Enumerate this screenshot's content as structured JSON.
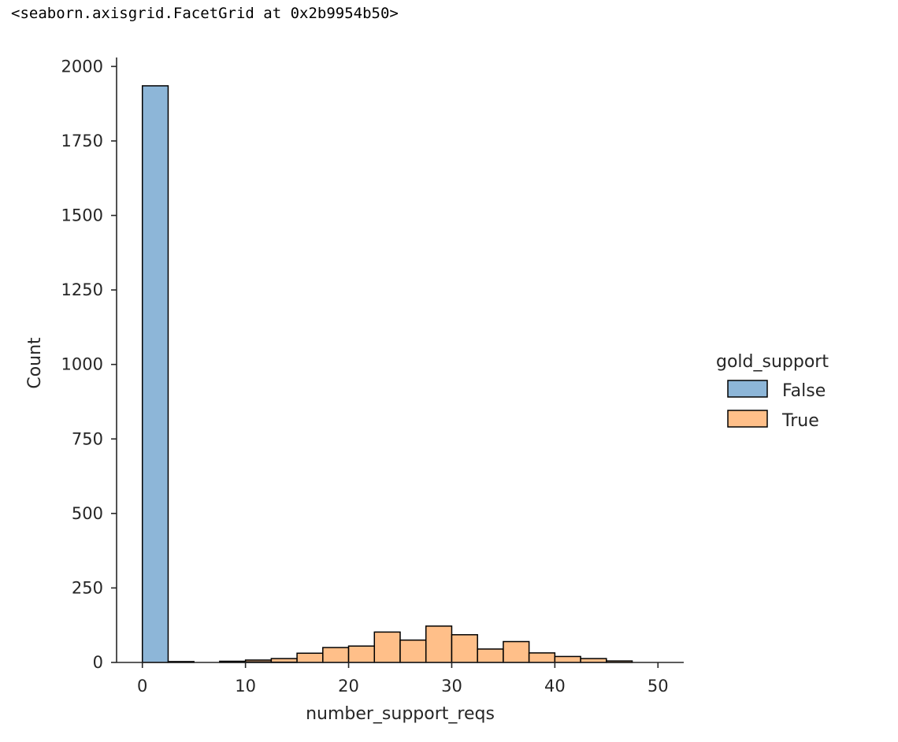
{
  "output_repr": "<seaborn.axisgrid.FacetGrid at 0x2b9954b50>",
  "chart_data": {
    "type": "bar",
    "subtype": "stacked-histogram",
    "xlabel": "number_support_reqs",
    "ylabel": "Count",
    "xlim": [
      -2.5,
      52.5
    ],
    "ylim": [
      0,
      2030
    ],
    "xticks": [
      0,
      10,
      20,
      30,
      40,
      50
    ],
    "yticks": [
      0,
      250,
      500,
      750,
      1000,
      1250,
      1500,
      1750,
      2000
    ],
    "bin_edges": [
      0.0,
      2.5,
      5.0,
      7.5,
      10.0,
      12.5,
      15.0,
      17.5,
      20.0,
      22.5,
      25.0,
      27.5,
      30.0,
      32.5,
      35.0,
      37.5,
      40.0,
      42.5,
      45.0,
      47.5,
      50.0
    ],
    "series": [
      {
        "name": "False",
        "color": "#8db6d8",
        "values": [
          1935,
          3,
          0,
          2,
          2,
          1,
          0,
          0,
          0,
          0,
          0,
          0,
          0,
          0,
          0,
          0,
          0,
          0,
          0,
          0
        ]
      },
      {
        "name": "True",
        "color": "#ffbf89",
        "values": [
          0,
          0,
          0,
          2,
          6,
          12,
          31,
          50,
          55,
          102,
          75,
          122,
          93,
          45,
          70,
          32,
          20,
          13,
          5,
          0
        ]
      }
    ],
    "legend": {
      "title": "gold_support",
      "position": "right",
      "entries": [
        "False",
        "True"
      ]
    },
    "grid": false
  }
}
